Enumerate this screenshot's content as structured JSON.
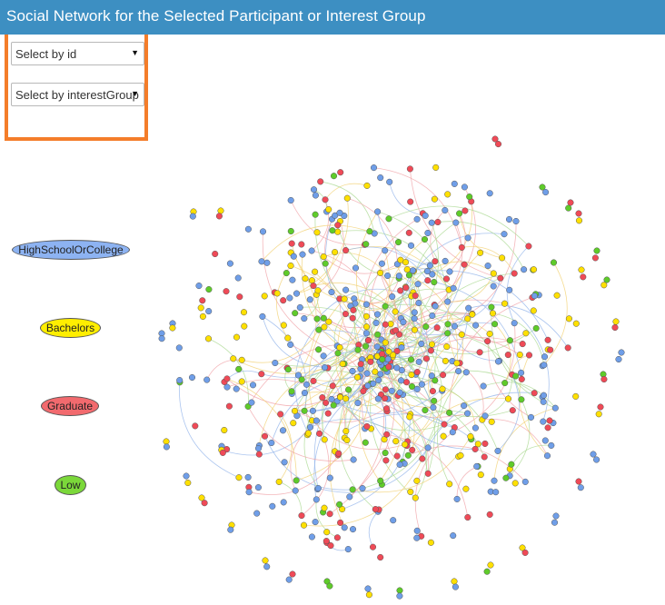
{
  "header": {
    "title": "Social Network for the Selected Participant or Interest Group"
  },
  "filters": {
    "select_id": {
      "value": "Select by id"
    },
    "select_group": {
      "value": "Select by interestGroup"
    }
  },
  "legend": [
    {
      "label": "HighSchoolOrCollege",
      "color": "#8db3f2"
    },
    {
      "label": "Bachelors",
      "color": "#ffee00"
    },
    {
      "label": "Graduate",
      "color": "#f26a6e"
    },
    {
      "label": "Low",
      "color": "#7bd83a"
    }
  ],
  "network": {
    "node_colors": {
      "HighSchoolOrCollege": "#6f9ee8",
      "Bachelors": "#ffe000",
      "Graduate": "#ef4a57",
      "Low": "#5fcb2a"
    },
    "edge_colors": [
      "#8fb2ea",
      "#f0a0a6",
      "#f2d070",
      "#a8d88f"
    ]
  }
}
